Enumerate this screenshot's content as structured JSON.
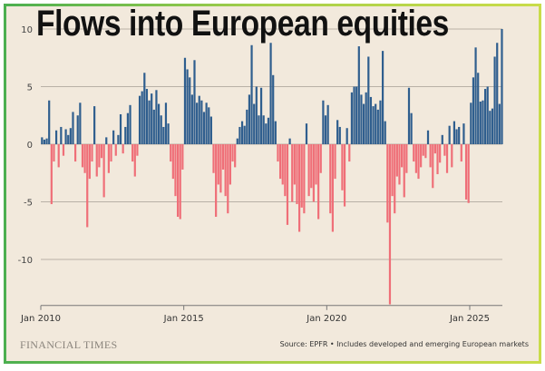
{
  "chart_data": {
    "type": "bar",
    "title": "Flows into European equities",
    "xlabel": "",
    "ylabel": "",
    "frequency": "monthly",
    "start": "2010-01",
    "x_ticks": [
      "Jan 2010",
      "Jan 2015",
      "Jan 2020",
      "Jan 2025"
    ],
    "y_ticks": [
      10,
      5,
      0,
      -5,
      -10
    ],
    "ylim": [
      -14,
      10.5
    ],
    "grid": true,
    "colors": {
      "positive": "#2f5e8e",
      "negative": "#ef6f78",
      "grid": "#b9b1a6",
      "background": "#f2e9dc"
    },
    "values": [
      0.6,
      0.4,
      0.5,
      3.8,
      -5.2,
      -1.5,
      1.2,
      -2,
      1.5,
      -1,
      1.3,
      0.8,
      1.4,
      2.8,
      -1.5,
      2.5,
      3.6,
      -2,
      -2.5,
      -7.2,
      -3,
      -1.5,
      3.3,
      -2.8,
      -2,
      -1.2,
      -4.6,
      0.6,
      -2.5,
      -1.5,
      1.2,
      -1,
      0.8,
      2.6,
      -0.8,
      1.5,
      2.7,
      3.4,
      -1.5,
      -2.8,
      -1,
      4.2,
      4.6,
      6.2,
      4.8,
      3.8,
      4.4,
      3,
      4.7,
      3.5,
      2.5,
      1.5,
      3.6,
      1.8,
      -1.5,
      -3,
      -4.5,
      -6.3,
      -6.5,
      -2.2,
      7.5,
      6.5,
      5.8,
      4.3,
      7.3,
      3.6,
      4.2,
      3.8,
      2.8,
      3.6,
      3.2,
      2.4,
      -2.5,
      -6.3,
      -3.5,
      -4.2,
      -2.2,
      -4.5,
      -6,
      -3.5,
      -1.5,
      -2,
      0.5,
      1.5,
      2,
      1.6,
      3,
      4.3,
      8.6,
      3.5,
      5,
      2.5,
      4.9,
      2.5,
      1.8,
      2.3,
      8.8,
      6,
      2,
      -1.5,
      -3,
      -3.5,
      -4.5,
      -7,
      0.5,
      -5,
      -3.5,
      -5.2,
      -7.6,
      -5.5,
      -6,
      1.8,
      -4.5,
      -3.8,
      -5,
      -3.5,
      -6.5,
      -2.5,
      3.8,
      2.5,
      3.4,
      -6,
      -7.6,
      -3,
      2.1,
      1.5,
      -4,
      -5.4,
      1.4,
      -1.5,
      4.5,
      5,
      5,
      8.5,
      4.3,
      3.5,
      4.5,
      7.6,
      4.1,
      3.3,
      3.5,
      3,
      3.8,
      8.1,
      2,
      -6.8,
      -13.9,
      -4.5,
      -6,
      -2.8,
      -3.5,
      -2,
      -4.6,
      -2.5,
      4.9,
      2.7,
      -1.5,
      -2.5,
      -3,
      -2,
      -1,
      -1.2,
      1.2,
      -2,
      -3.8,
      -0.8,
      -2.6,
      -1.6,
      0.8,
      -1,
      -2.5,
      1.6,
      -2,
      2,
      1.3,
      1.5,
      -1.5,
      1.8,
      -4.8,
      -5.1,
      3.6,
      5.8,
      8.4,
      6.2,
      3.7,
      3.8,
      4.8,
      5,
      2.9,
      3.1,
      7.6,
      8.8,
      3.5,
      10
    ]
  },
  "footer": {
    "brand": "FINANCIAL TIMES",
    "source": "Source: EPFR • Includes developed and emerging European markets"
  }
}
